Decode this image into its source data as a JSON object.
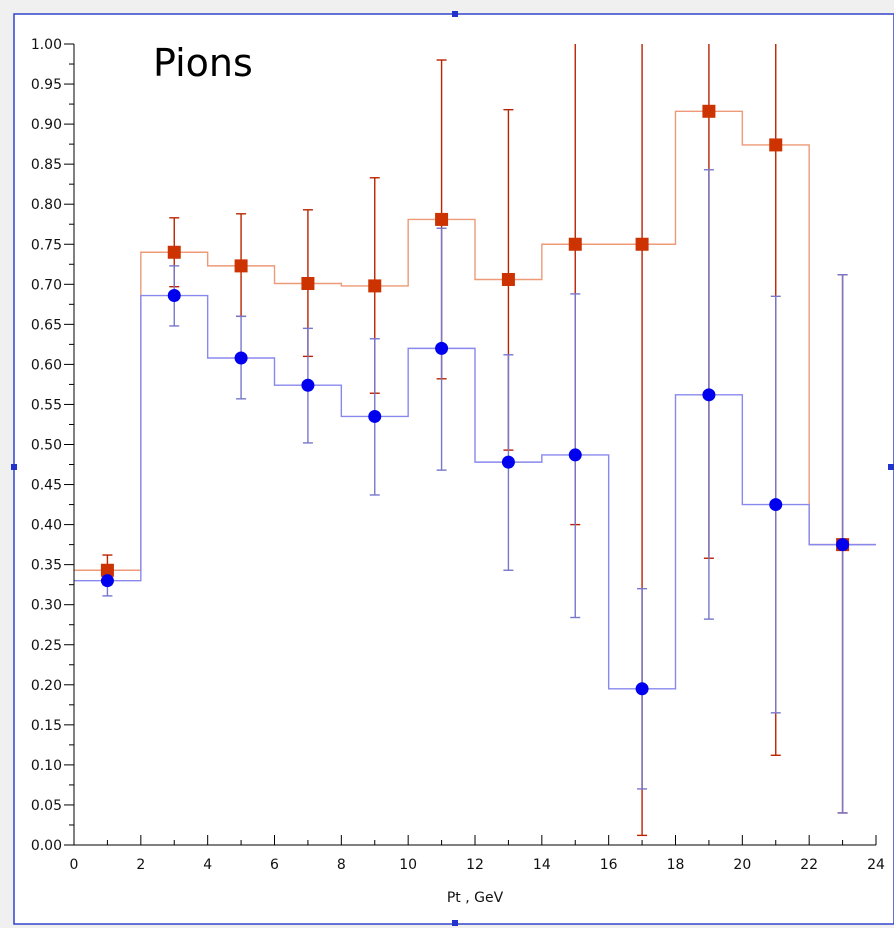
{
  "chart_data": {
    "type": "scatter",
    "title": "Pions",
    "xlabel": "Pt , GeV",
    "ylabel": "",
    "xlim": [
      0,
      24
    ],
    "ylim": [
      0,
      1.0
    ],
    "xticks": [
      "0",
      "2",
      "4",
      "6",
      "8",
      "10",
      "12",
      "14",
      "16",
      "18",
      "20",
      "22",
      "24"
    ],
    "yticks": [
      "0.00",
      "0.05",
      "0.10",
      "0.15",
      "0.20",
      "0.25",
      "0.30",
      "0.35",
      "0.40",
      "0.45",
      "0.50",
      "0.55",
      "0.60",
      "0.65",
      "0.70",
      "0.75",
      "0.80",
      "0.85",
      "0.90",
      "0.95",
      "1.00"
    ],
    "grid": false,
    "bins": [
      [
        0,
        2
      ],
      [
        2,
        4
      ],
      [
        4,
        6
      ],
      [
        6,
        8
      ],
      [
        8,
        10
      ],
      [
        10,
        12
      ],
      [
        12,
        14
      ],
      [
        14,
        16
      ],
      [
        16,
        18
      ],
      [
        18,
        20
      ],
      [
        20,
        22
      ],
      [
        22,
        24
      ]
    ],
    "series": [
      {
        "marker": "square",
        "color": "#cc3300",
        "line_color": "#ee9977",
        "bar_color": "#bb2200",
        "x": [
          1,
          3,
          5,
          7,
          9,
          11,
          13,
          15,
          17,
          19,
          21,
          23
        ],
        "y": [
          0.343,
          0.74,
          0.723,
          0.701,
          0.698,
          0.781,
          0.706,
          0.75,
          0.75,
          0.916,
          0.874,
          0.375
        ],
        "err_low": [
          0.325,
          0.697,
          0.66,
          0.61,
          0.564,
          0.582,
          0.493,
          0.4,
          0.012,
          0.358,
          0.112,
          0.04
        ],
        "err_high": [
          0.362,
          0.783,
          0.788,
          0.793,
          0.833,
          0.98,
          0.918,
          1.0,
          1.0,
          1.0,
          1.0,
          0.712
        ]
      },
      {
        "marker": "circle",
        "color": "#0000ee",
        "line_color": "#8888ee",
        "bar_color": "#7777cc",
        "x": [
          1,
          3,
          5,
          7,
          9,
          11,
          13,
          15,
          17,
          19,
          21,
          23
        ],
        "y": [
          0.33,
          0.686,
          0.608,
          0.574,
          0.535,
          0.62,
          0.478,
          0.487,
          0.195,
          0.562,
          0.425,
          0.375
        ],
        "err_low": [
          0.311,
          0.648,
          0.557,
          0.502,
          0.437,
          0.468,
          0.343,
          0.284,
          0.07,
          0.282,
          0.165,
          0.04
        ],
        "err_high": [
          0.348,
          0.723,
          0.66,
          0.645,
          0.632,
          0.77,
          0.612,
          0.688,
          0.32,
          0.843,
          0.685,
          0.712
        ]
      }
    ]
  }
}
